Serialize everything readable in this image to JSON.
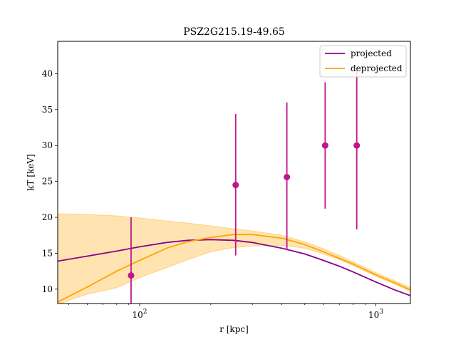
{
  "chart_data": {
    "type": "line",
    "title": "PSZ2G215.19-49.65",
    "xlabel": "r [kpc]",
    "ylabel": "kT [keV]",
    "xscale": "log",
    "xlim": [
      45,
      1400
    ],
    "ylim": [
      8,
      44.5
    ],
    "grid": false,
    "legend_position": "top-right",
    "x_ticks": [
      {
        "value": 100,
        "base": "10",
        "exp": "2"
      },
      {
        "value": 1000,
        "base": "10",
        "exp": "3"
      }
    ],
    "y_ticks": [
      10,
      15,
      20,
      25,
      30,
      35,
      40
    ],
    "series": [
      {
        "name": "projected",
        "color": "#8b008b",
        "x": [
          45,
          60,
          80,
          100,
          130,
          160,
          200,
          250,
          300,
          400,
          500,
          600,
          700,
          800,
          1000,
          1200,
          1400
        ],
        "y": [
          13.9,
          14.6,
          15.3,
          15.9,
          16.5,
          16.8,
          16.9,
          16.8,
          16.5,
          15.7,
          14.9,
          14.0,
          13.2,
          12.4,
          11.0,
          9.9,
          9.1
        ]
      },
      {
        "name": "deprojected",
        "color": "#ffa500",
        "x": [
          45,
          60,
          80,
          100,
          130,
          160,
          200,
          250,
          300,
          400,
          500,
          600,
          700,
          800,
          1000,
          1200,
          1400
        ],
        "y": [
          8.2,
          10.3,
          12.5,
          14.0,
          15.7,
          16.6,
          17.2,
          17.6,
          17.6,
          17.1,
          16.2,
          15.2,
          14.3,
          13.5,
          12.0,
          10.9,
          9.9
        ],
        "band_lower": [
          7.9,
          9.3,
          10.2,
          11.6,
          13.0,
          14.1,
          15.2,
          15.8,
          16.0,
          16.1,
          15.7,
          14.9,
          14.1,
          13.3,
          11.8,
          10.7,
          9.7
        ],
        "band_upper": [
          20.5,
          20.4,
          20.2,
          19.9,
          19.5,
          19.2,
          18.8,
          18.4,
          18.1,
          17.5,
          16.6,
          15.6,
          14.7,
          13.8,
          12.3,
          11.2,
          10.2
        ]
      }
    ],
    "points": {
      "color": "#c0168a",
      "x": [
        92,
        255,
        420,
        610,
        830
      ],
      "y": [
        11.9,
        24.5,
        25.6,
        30.0,
        30.0
      ],
      "y_low": [
        8.0,
        14.7,
        15.4,
        21.2,
        18.3
      ],
      "y_high": [
        20.0,
        34.4,
        36.0,
        38.8,
        40.5
      ]
    }
  }
}
